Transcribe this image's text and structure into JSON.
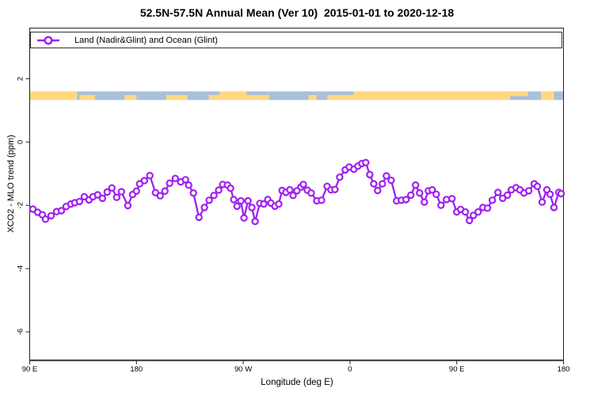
{
  "title": "52.5N-57.5N Annual Mean (Ver 10)  2015-01-01 to 2020-12-18",
  "legend": {
    "label": "Land (Nadir&Glint) and Ocean (Glint)"
  },
  "chart_data": {
    "type": "line",
    "title": "52.5N-57.5N Annual Mean (Ver 10)  2015-01-01 to 2020-12-18",
    "xlabel": "Longitude (deg E)",
    "ylabel": "XCO2 - MLO trend (ppm)",
    "xlim": [
      90,
      540
    ],
    "ylim": [
      -6.9,
      3.6
    ],
    "grid": false,
    "legend_position": "top-left-inside",
    "x_ticks": [
      90,
      180,
      270,
      360,
      450,
      540
    ],
    "x_tick_labels": [
      "90 E",
      "180",
      "90 W",
      "0",
      "90 E",
      "180"
    ],
    "y_ticks": [
      2,
      0,
      -2,
      -4,
      -6
    ],
    "y_tick_labels": [
      "2",
      "0",
      "-2",
      "-4",
      "-6"
    ],
    "series": [
      {
        "name": "Land (Nadir&Glint) and Ocean (Glint)",
        "color": "#A020F0",
        "marker": "open-circle",
        "x": [
          92.7,
          96.7,
          100.7,
          103.3,
          108,
          112.7,
          116.7,
          120.7,
          124.7,
          128,
          132,
          136,
          140,
          143.3,
          147.3,
          151.3,
          155.3,
          159.3,
          163.3,
          167.3,
          172.7,
          176.7,
          180,
          182.7,
          186.7,
          191.3,
          196,
          200,
          204,
          208,
          212.7,
          217.3,
          221.3,
          224,
          228,
          232.7,
          237.3,
          241.3,
          245.3,
          249.3,
          252.7,
          256.7,
          259.3,
          262,
          264.7,
          268,
          270.7,
          274,
          277.3,
          280,
          284,
          287.3,
          290.7,
          293.3,
          296.7,
          300,
          302.7,
          306,
          309.3,
          312,
          315.3,
          318.7,
          320.7,
          324,
          327.3,
          332,
          336,
          340.7,
          344,
          347.3,
          351.3,
          356,
          359.3,
          363.3,
          366.7,
          370,
          373.3,
          376.7,
          380,
          383.3,
          387.3,
          390.7,
          394.7,
          399.3,
          403.3,
          407.3,
          411.3,
          415.3,
          418.7,
          422.7,
          426,
          429.3,
          432.7,
          436.7,
          441.3,
          446,
          450,
          453.3,
          457.3,
          460.7,
          464,
          468,
          472,
          476,
          480,
          484.7,
          488.7,
          492.7,
          496,
          500,
          503.3,
          506.7,
          510.7,
          515.3,
          518,
          522,
          526,
          528.7,
          532,
          536,
          538
        ],
        "values": [
          -2.12,
          -2.22,
          -2.3,
          -2.44,
          -2.33,
          -2.2,
          -2.17,
          -2.04,
          -1.96,
          -1.92,
          -1.88,
          -1.73,
          -1.83,
          -1.73,
          -1.67,
          -1.78,
          -1.58,
          -1.45,
          -1.75,
          -1.57,
          -2.01,
          -1.66,
          -1.55,
          -1.32,
          -1.22,
          -1.06,
          -1.6,
          -1.7,
          -1.55,
          -1.3,
          -1.15,
          -1.26,
          -1.19,
          -1.36,
          -1.61,
          -2.38,
          -2.07,
          -1.84,
          -1.69,
          -1.52,
          -1.34,
          -1.36,
          -1.46,
          -1.82,
          -2.03,
          -1.86,
          -2.4,
          -1.86,
          -2.07,
          -2.51,
          -1.94,
          -1.96,
          -1.82,
          -1.93,
          -2.03,
          -1.96,
          -1.53,
          -1.59,
          -1.51,
          -1.69,
          -1.54,
          -1.42,
          -1.34,
          -1.52,
          -1.61,
          -1.86,
          -1.84,
          -1.4,
          -1.51,
          -1.5,
          -1.11,
          -0.88,
          -0.79,
          -0.86,
          -0.76,
          -0.68,
          -0.65,
          -1.03,
          -1.32,
          -1.53,
          -1.32,
          -1.07,
          -1.21,
          -1.86,
          -1.84,
          -1.82,
          -1.68,
          -1.36,
          -1.61,
          -1.9,
          -1.54,
          -1.51,
          -1.65,
          -2.0,
          -1.82,
          -1.79,
          -2.21,
          -2.13,
          -2.21,
          -2.48,
          -2.32,
          -2.21,
          -2.07,
          -2.09,
          -1.84,
          -1.59,
          -1.78,
          -1.68,
          -1.51,
          -1.44,
          -1.51,
          -1.61,
          -1.54,
          -1.32,
          -1.4,
          -1.9,
          -1.51,
          -1.65,
          -2.07,
          -1.59,
          -1.63
        ]
      }
    ],
    "map_strip": {
      "description": "land/ocean mask band for latitude zone 52.5N-57.5N",
      "y_range": [
        1.33,
        1.6
      ],
      "ocean_color": "#A9BFDC",
      "land_color": "#FFD880",
      "land_segments": [
        {
          "from": 90,
          "to": 130,
          "part": "full"
        },
        {
          "from": 132,
          "to": 145,
          "part": "bottom"
        },
        {
          "from": 170,
          "to": 180,
          "part": "bottom"
        },
        {
          "from": 205,
          "to": 223,
          "part": "bottom"
        },
        {
          "from": 241,
          "to": 250,
          "part": "bottom"
        },
        {
          "from": 250,
          "to": 273,
          "part": "full"
        },
        {
          "from": 273,
          "to": 292,
          "part": "bottom"
        },
        {
          "from": 325,
          "to": 332,
          "part": "bottom"
        },
        {
          "from": 341,
          "to": 352,
          "part": "bottom"
        },
        {
          "from": 352,
          "to": 363,
          "part": "bottom"
        },
        {
          "from": 363,
          "to": 495,
          "part": "full"
        },
        {
          "from": 495,
          "to": 510,
          "part": "top"
        },
        {
          "from": 521,
          "to": 532,
          "part": "full"
        }
      ]
    }
  }
}
